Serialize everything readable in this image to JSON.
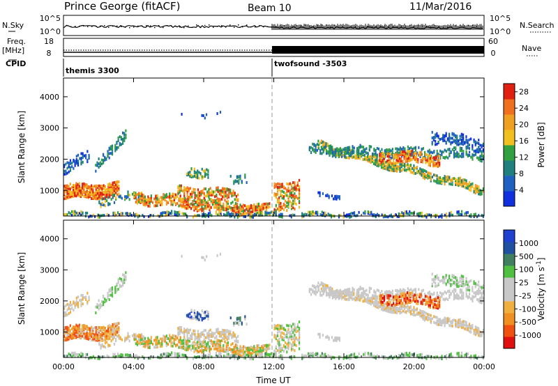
{
  "header": {
    "title": "Prince George (fitACF)",
    "beam": "Beam 10",
    "date": "11/Mar/2016"
  },
  "strips": {
    "nsky_label": "N.Sky",
    "nsearch_label": "N.Search",
    "nsky_ticks": [
      "10^5",
      "10^0"
    ],
    "nsearch_ticks": [
      "10^5",
      "10^0"
    ],
    "freq_label": "Freq.",
    "freq_unit": "[MHz]",
    "freq_ticks": [
      "18",
      "8"
    ],
    "nave_label": "Nave",
    "nave_ticks": [
      "60",
      "0"
    ],
    "cpid_label": "CPID",
    "cpid_segments": [
      "themis 3300",
      "twofsound -3503"
    ]
  },
  "colors": {
    "power_scale": [
      "#1030e0",
      "#2060c0",
      "#208080",
      "#30a040",
      "#f0c020",
      "#f0a020",
      "#f07020",
      "#e02010"
    ],
    "velocity_scale": [
      "#e01010",
      "#f05010",
      "#f09020",
      "#f0b040",
      "#c8c8c8",
      "#c8c8c8",
      "#50c040",
      "#408060",
      "#2050a0",
      "#2040d0"
    ]
  },
  "chart_data": [
    {
      "type": "heatmap",
      "title": "",
      "xlabel": "",
      "ylabel": "Slant Range [km]",
      "x_range": [
        "00:00",
        "24:00"
      ],
      "ylim": [
        180,
        4600
      ],
      "y_ticks": [
        1000,
        2000,
        3000,
        4000
      ],
      "x_ticks": [
        "00:00",
        "04:00",
        "08:00",
        "12:00",
        "16:00",
        "20:00",
        "00:00"
      ],
      "colorbar": {
        "label": "Power [dB]",
        "ticks": [
          4,
          8,
          12,
          16,
          20,
          24,
          28
        ],
        "range": [
          0,
          30
        ]
      }
    },
    {
      "type": "heatmap",
      "title": "",
      "xlabel": "Time UT",
      "ylabel": "Slant Range [km]",
      "x_range": [
        "00:00",
        "24:00"
      ],
      "ylim": [
        180,
        4600
      ],
      "y_ticks": [
        1000,
        2000,
        3000,
        4000
      ],
      "x_ticks": [
        "00:00",
        "04:00",
        "08:00",
        "12:00",
        "16:00",
        "20:00",
        "00:00"
      ],
      "colorbar": {
        "label": "Velocity [m s^-1]",
        "ticks": [
          "1000",
          "500",
          "100",
          "25",
          "-25",
          "-100",
          "-500",
          "-1000"
        ]
      }
    }
  ]
}
